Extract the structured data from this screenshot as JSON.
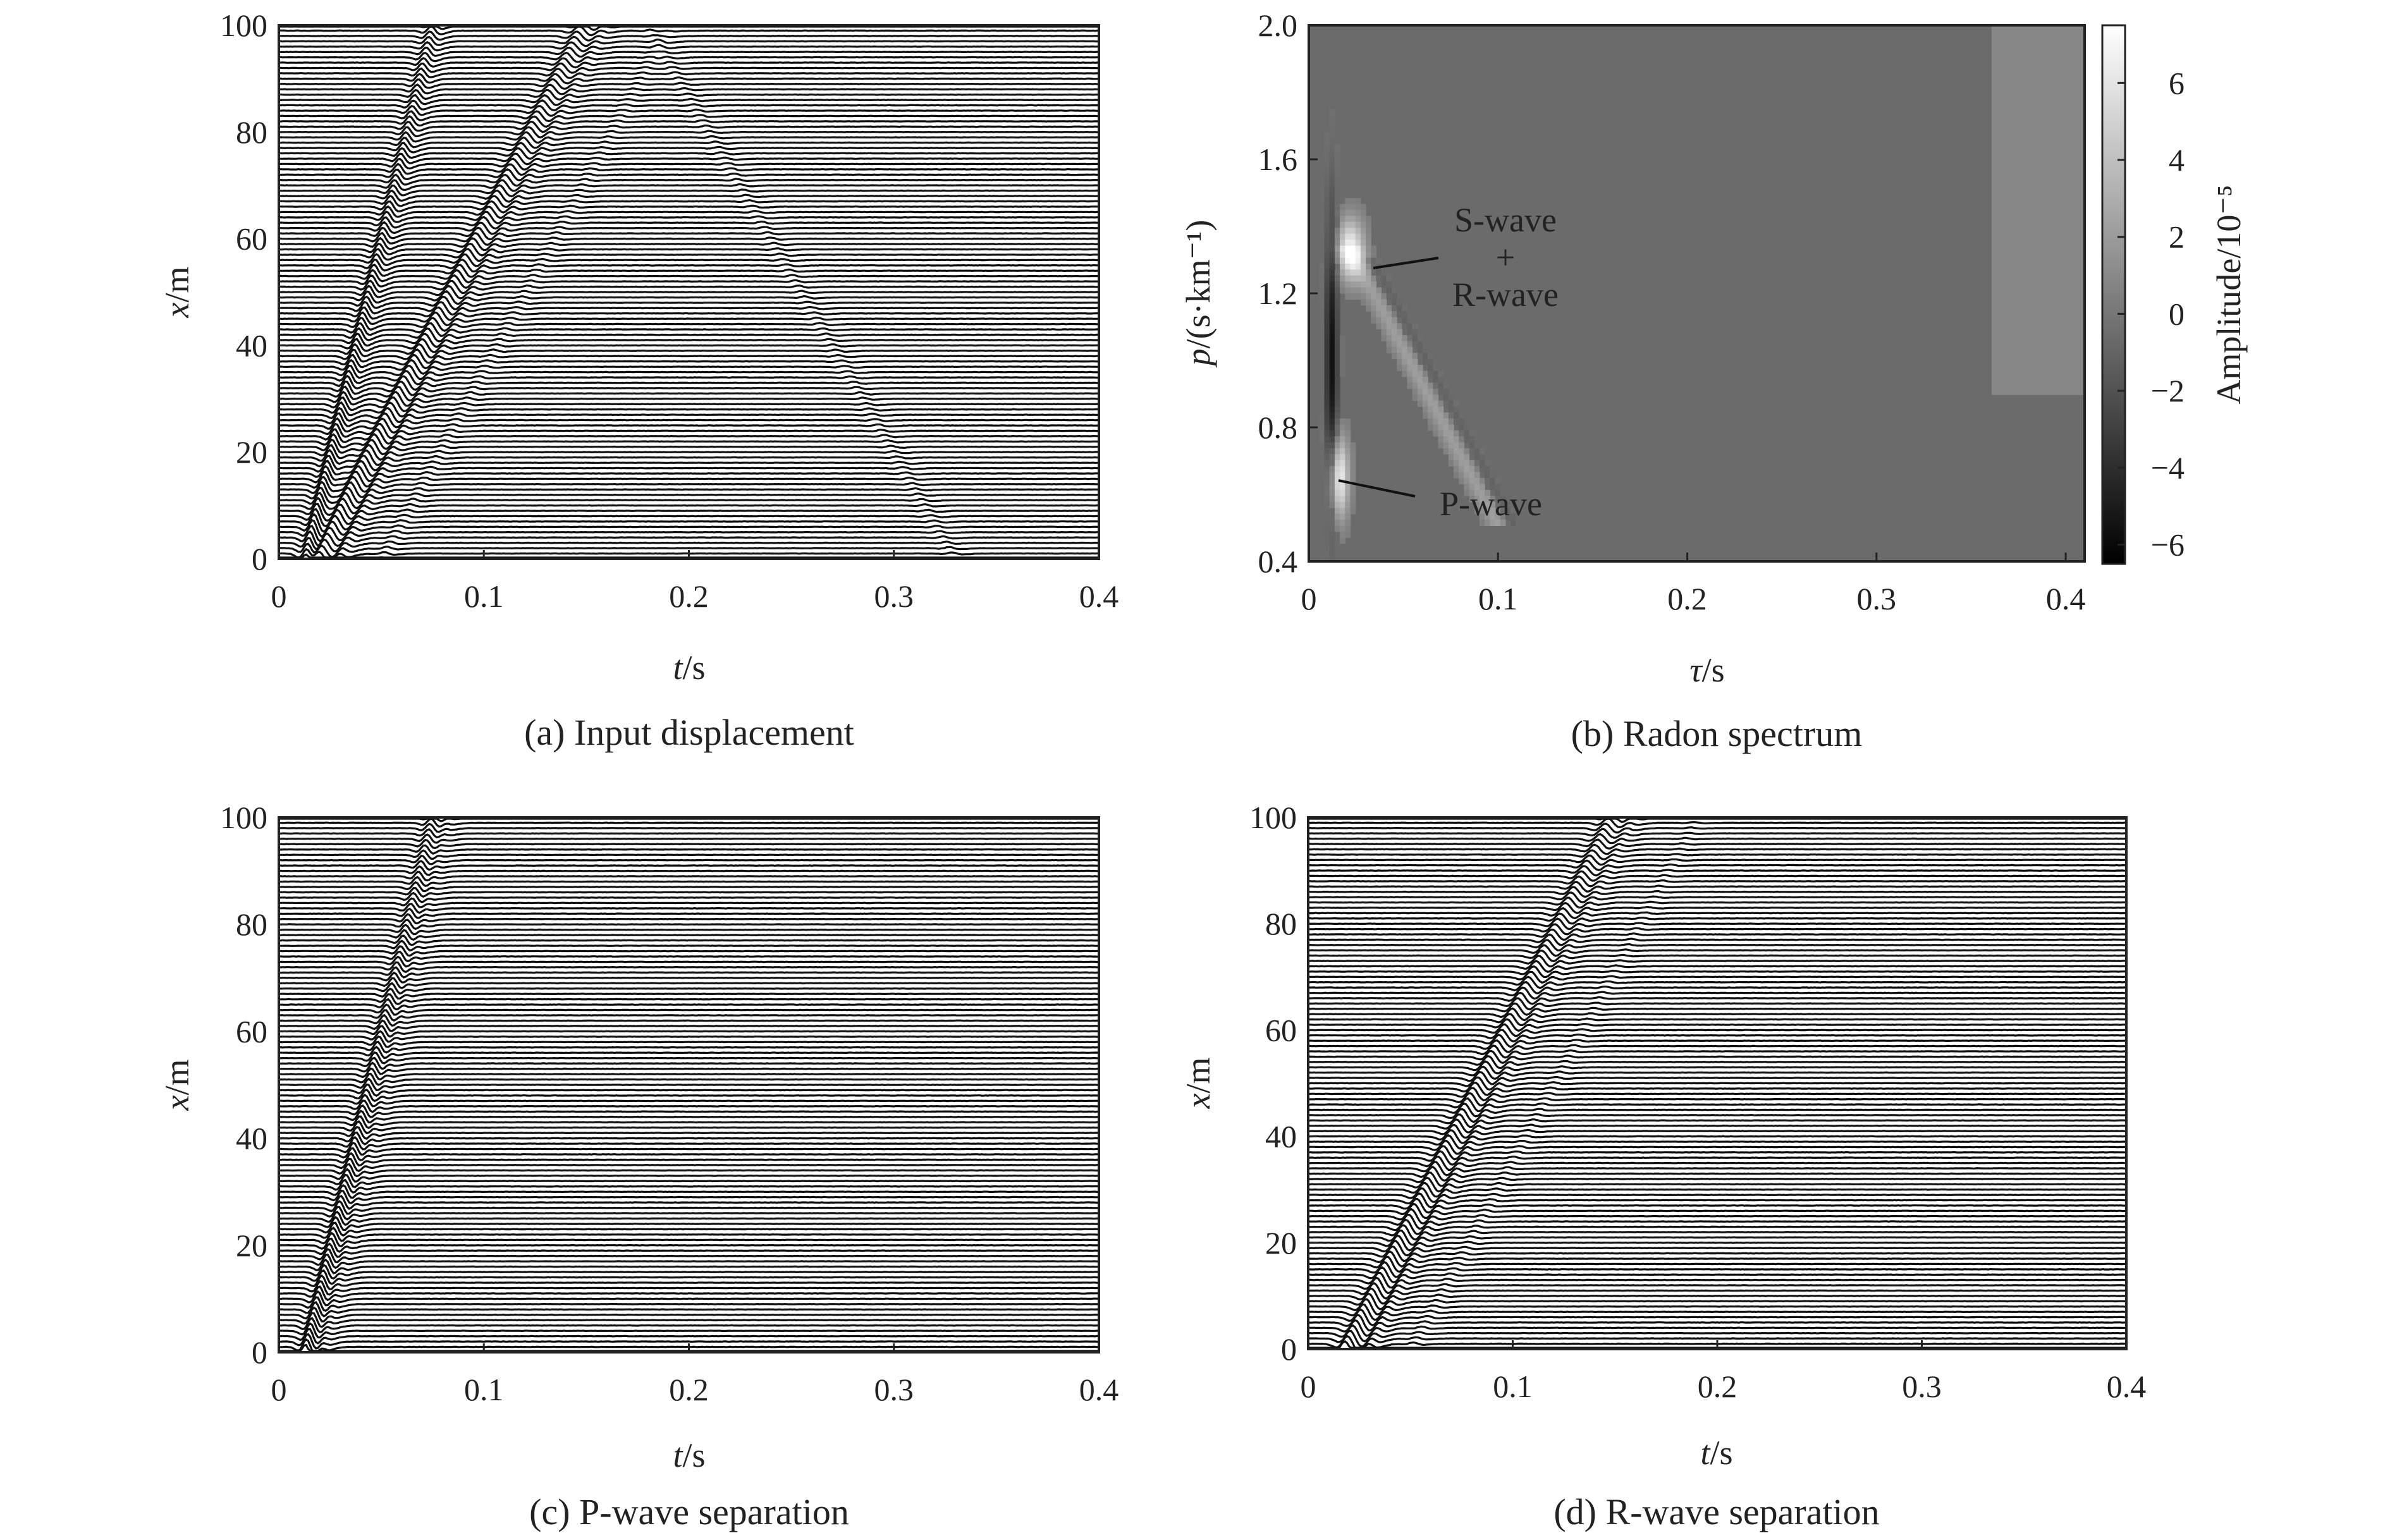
{
  "chart_data": [
    {
      "type": "line",
      "caption": "(a) Input displacement",
      "xlabel_var": "t",
      "xlabel_unit": "/s",
      "ylabel_var": "x",
      "ylabel_unit": "/m",
      "xlim": [
        0,
        0.4
      ],
      "ylim": [
        0,
        100
      ],
      "xticks": [
        "0",
        "0.1",
        "0.2",
        "0.3",
        "0.4"
      ],
      "yticks": [
        "0",
        "20",
        "40",
        "60",
        "80",
        "100"
      ],
      "trace_offsets_m": {
        "start": 0,
        "end": 100,
        "step": 1
      },
      "events": [
        {
          "name": "P-wave",
          "t0": 0.013,
          "slowness": 0.00062,
          "strength": 1.0,
          "width": 0.0035
        },
        {
          "name": "S-wave + R-wave",
          "t0": 0.018,
          "slowness": 0.0013,
          "strength": 1.0,
          "width": 0.0045
        },
        {
          "name": "",
          "t0": 0.028,
          "slowness": 0.0013,
          "strength": 0.45,
          "width": 0.004
        },
        {
          "name": "",
          "t0": 0.05,
          "slowness": 0.0014,
          "strength": 0.18,
          "width": 0.004
        },
        {
          "name": "",
          "t0": 0.33,
          "slowness": -0.0015,
          "strength": 0.14,
          "width": 0.004
        }
      ]
    },
    {
      "type": "heatmap",
      "caption": "(b) Radon spectrum",
      "xlabel_var": "τ",
      "xlabel_unit": "/s",
      "ylabel_var": "p",
      "ylabel_unit": "/(s·km⁻¹)",
      "xlim": [
        0,
        0.41
      ],
      "ylim": [
        0.4,
        2.0
      ],
      "xticks": [
        "0",
        "0.1",
        "0.2",
        "0.3",
        "0.4"
      ],
      "yticks": [
        "0.4",
        "0.8",
        "1.2",
        "1.6",
        "2.0"
      ],
      "colorbar": {
        "label": "Amplitude/10⁻⁵",
        "range": [
          -6.5,
          7.5
        ],
        "ticks": [
          "−6",
          "−4",
          "−2",
          "0",
          "2",
          "4",
          "6"
        ],
        "colors": [
          "#000000",
          "#ffffff"
        ]
      },
      "background_color": "#6b6b6b",
      "features": [
        {
          "tau": 0.016,
          "p": 0.65,
          "amplitude": 7.0
        },
        {
          "tau": 0.022,
          "p": 1.33,
          "amplitude": 7.0
        },
        {
          "tau": 0.012,
          "p": 1.0,
          "amplitude": -5.5
        }
      ],
      "annotations": [
        {
          "text": "S-wave",
          "tau": 0.1,
          "p": 1.4
        },
        {
          "text": "+",
          "tau": 0.1,
          "p": 1.3
        },
        {
          "text": "R-wave",
          "tau": 0.1,
          "p": 1.2
        },
        {
          "text": "P-wave",
          "tau": 0.1,
          "p": 0.57
        }
      ]
    },
    {
      "type": "line",
      "caption": "(c) P-wave separation",
      "xlabel_var": "t",
      "xlabel_unit": "/s",
      "ylabel_var": "x",
      "ylabel_unit": "/m",
      "xlim": [
        0,
        0.4
      ],
      "ylim": [
        0,
        100
      ],
      "xticks": [
        "0",
        "0.1",
        "0.2",
        "0.3",
        "0.4"
      ],
      "yticks": [
        "0",
        "20",
        "40",
        "60",
        "80",
        "100"
      ],
      "trace_offsets_m": {
        "start": 0,
        "end": 100,
        "step": 1
      },
      "events": [
        {
          "name": "P-wave",
          "t0": 0.013,
          "slowness": 0.00062,
          "strength": 1.0,
          "width": 0.0035
        },
        {
          "name": "",
          "t0": 0.02,
          "slowness": 0.00062,
          "strength": 0.35,
          "width": 0.0035
        }
      ]
    },
    {
      "type": "line",
      "caption": "(d) R-wave separation",
      "xlabel_var": "t",
      "xlabel_unit": "/s",
      "ylabel_var": "x",
      "ylabel_unit": "/m",
      "xlim": [
        0,
        0.4
      ],
      "ylim": [
        0,
        100
      ],
      "xticks": [
        "0",
        "0.1",
        "0.2",
        "0.3",
        "0.4"
      ],
      "yticks": [
        "0",
        "20",
        "40",
        "60",
        "80",
        "100"
      ],
      "trace_offsets_m": {
        "start": 0,
        "end": 100,
        "step": 1
      },
      "events": [
        {
          "name": "R-wave",
          "t0": 0.018,
          "slowness": 0.0013,
          "strength": 1.0,
          "width": 0.0045
        },
        {
          "name": "",
          "t0": 0.028,
          "slowness": 0.0013,
          "strength": 0.45,
          "width": 0.004
        },
        {
          "name": "",
          "t0": 0.05,
          "slowness": 0.0014,
          "strength": 0.16,
          "width": 0.004
        }
      ]
    }
  ]
}
